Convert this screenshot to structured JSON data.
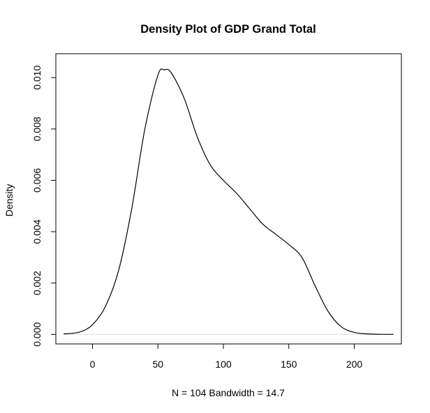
{
  "chart_data": {
    "type": "line",
    "title": "Density Plot of GDP Grand Total",
    "xlabel": "N = 104   Bandwidth = 14.7",
    "ylabel": "Density",
    "xlim": [
      -28,
      236
    ],
    "ylim": [
      -0.00037,
      0.01093
    ],
    "x_ticks": [
      0,
      50,
      100,
      150,
      200
    ],
    "x_tick_labels": [
      "0",
      "50",
      "100",
      "150",
      "200"
    ],
    "y_ticks": [
      0.0,
      0.002,
      0.004,
      0.006,
      0.008,
      0.01
    ],
    "y_tick_labels": [
      "0.000",
      "0.002",
      "0.004",
      "0.006",
      "0.008",
      "0.010"
    ],
    "grid": false,
    "baseline_y": 0,
    "series": [
      {
        "x": [
          -22,
          -10,
          0,
          10,
          20,
          30,
          40,
          50,
          55,
          60,
          70,
          80,
          90,
          100,
          110,
          120,
          130,
          140,
          150,
          160,
          170,
          180,
          190,
          200,
          210,
          220,
          230
        ],
        "y": [
          2e-05,
          9e-05,
          0.00038,
          0.0011,
          0.0025,
          0.0049,
          0.008,
          0.0101,
          0.0103,
          0.0102,
          0.0092,
          0.0077,
          0.0066,
          0.006,
          0.0055,
          0.0049,
          0.0043,
          0.0039,
          0.0035,
          0.003,
          0.0019,
          0.0009,
          0.0003,
          8e-05,
          2e-05,
          5e-06,
          1e-06
        ]
      }
    ]
  }
}
